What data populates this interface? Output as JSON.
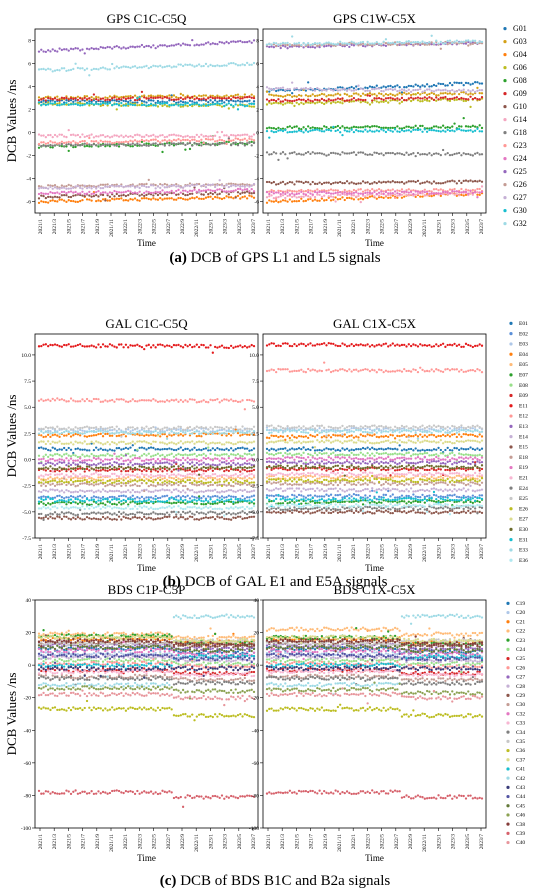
{
  "figure": {
    "x_ticks": [
      "2021/1",
      "2021/3",
      "2021/5",
      "2021/7",
      "2021/9",
      "2021/11",
      "2022/1",
      "2022/3",
      "2022/5",
      "2022/7",
      "2022/9",
      "2022/11",
      "2023/1",
      "2023/3",
      "2023/5",
      "2023/7"
    ],
    "time_label": "Time",
    "ylabel": "DCB Values /ns"
  },
  "captions": [
    {
      "tag": "(a)",
      "text": " DCB of GPS L1 and L5 signals"
    },
    {
      "tag": "(b)",
      "text": " DCB of GAL E1 and E5A signals"
    },
    {
      "tag": "(c)",
      "text": " DCB of BDS B1C and B2a signals"
    }
  ],
  "chart_data": [
    {
      "type": "scatter",
      "title": "GPS C1C-C5Q",
      "xlabel": "Time",
      "ylabel": "DCB Values /ns",
      "ylim": [
        -7,
        9
      ],
      "yticks": [
        -6,
        -4,
        -2,
        0,
        2,
        4,
        6,
        8
      ],
      "series": [
        {
          "name": "G01",
          "color": "#1f77b4",
          "start": 2.7,
          "end": 2.7
        },
        {
          "name": "G03",
          "color": "#d4a017",
          "start": 3.0,
          "end": 3.2
        },
        {
          "name": "G04",
          "color": "#ff7f0e",
          "start": -6.0,
          "end": -5.6
        },
        {
          "name": "G06",
          "color": "#bcbd22",
          "start": 2.5,
          "end": 2.3
        },
        {
          "name": "G08",
          "color": "#2ca02c",
          "start": -1.2,
          "end": -0.9
        },
        {
          "name": "G09",
          "color": "#d62728",
          "start": 2.9,
          "end": 3.0
        },
        {
          "name": "G10",
          "color": "#8c564b",
          "start": -5.6,
          "end": -5.2
        },
        {
          "name": "G14",
          "color": "#f4a6c0",
          "start": -0.3,
          "end": -0.3
        },
        {
          "name": "G18",
          "color": "#7f7f7f",
          "start": -1.1,
          "end": -1.0
        },
        {
          "name": "G23",
          "color": "#ff9896",
          "start": -0.9,
          "end": -0.6
        },
        {
          "name": "G24",
          "color": "#e377c2",
          "start": -5.3,
          "end": -5.0
        },
        {
          "name": "G25",
          "color": "#9467bd",
          "start": 7.1,
          "end": 7.9
        },
        {
          "name": "G26",
          "color": "#c49c94",
          "start": -4.7,
          "end": -4.5
        },
        {
          "name": "G27",
          "color": "#c5b0d5",
          "start": -4.8,
          "end": -4.6
        },
        {
          "name": "G30",
          "color": "#17becf",
          "start": 2.5,
          "end": 2.4
        },
        {
          "name": "G32",
          "color": "#9edae5",
          "start": 5.4,
          "end": 6.0
        }
      ]
    },
    {
      "type": "scatter",
      "title": "GPS C1W-C5X",
      "xlabel": "Time",
      "ylim": [
        -7,
        9
      ],
      "yticks": [
        -6,
        -4,
        -2,
        0,
        2,
        4,
        6,
        8
      ],
      "series": [
        {
          "name": "G01",
          "color": "#1f77b4",
          "start": 3.6,
          "end": 4.3
        },
        {
          "name": "G03",
          "color": "#d4a017",
          "start": 3.2,
          "end": 3.4
        },
        {
          "name": "G04",
          "color": "#ff7f0e",
          "start": -6.0,
          "end": -5.3
        },
        {
          "name": "G06",
          "color": "#bcbd22",
          "start": 2.5,
          "end": 2.9
        },
        {
          "name": "G08",
          "color": "#2ca02c",
          "start": 0.4,
          "end": 0.5
        },
        {
          "name": "G09",
          "color": "#d62728",
          "start": 2.8,
          "end": 3.0
        },
        {
          "name": "G10",
          "color": "#8c564b",
          "start": -4.4,
          "end": -4.3
        },
        {
          "name": "G14",
          "color": "#f4a6c0",
          "start": -5.6,
          "end": -5.3
        },
        {
          "name": "G18",
          "color": "#7f7f7f",
          "start": -1.8,
          "end": -1.9
        },
        {
          "name": "G23",
          "color": "#ff9896",
          "start": -5.1,
          "end": -5.0
        },
        {
          "name": "G24",
          "color": "#e377c2",
          "start": -5.3,
          "end": -5.2
        },
        {
          "name": "G25",
          "color": "#9467bd",
          "start": 7.4,
          "end": 7.8
        },
        {
          "name": "G26",
          "color": "#c49c94",
          "start": 7.6,
          "end": 7.8
        },
        {
          "name": "G27",
          "color": "#c5b0d5",
          "start": 3.8,
          "end": 3.6
        },
        {
          "name": "G30",
          "color": "#17becf",
          "start": 0.1,
          "end": 0.2
        },
        {
          "name": "G32",
          "color": "#9edae5",
          "start": 7.7,
          "end": 7.9
        }
      ]
    },
    {
      "type": "scatter",
      "title": "GAL C1C-C5Q",
      "xlabel": "Time",
      "ylabel": "DCB Values /ns",
      "ylim": [
        -7.5,
        12
      ],
      "yticks": [
        -7.5,
        -5.0,
        -2.5,
        0.0,
        2.5,
        5.0,
        7.5,
        10.0
      ],
      "series": [
        {
          "name": "E01",
          "color": "#1f77b4",
          "start": 1.0,
          "end": 1.0
        },
        {
          "name": "E02",
          "color": "#5a8fd8",
          "start": -3.6,
          "end": -3.6
        },
        {
          "name": "E03",
          "color": "#aec7e8",
          "start": 2.8,
          "end": 2.8
        },
        {
          "name": "E04",
          "color": "#ff7f0e",
          "start": 2.3,
          "end": 2.4
        },
        {
          "name": "E05",
          "color": "#ffbb78",
          "start": -1.8,
          "end": -1.8
        },
        {
          "name": "E07",
          "color": "#2ca02c",
          "start": -4.2,
          "end": -4.1
        },
        {
          "name": "E08",
          "color": "#98df8a",
          "start": 0.4,
          "end": 0.4
        },
        {
          "name": "E09",
          "color": "#d62728",
          "start": -1.0,
          "end": -1.0
        },
        {
          "name": "E11",
          "color": "#e41a1c",
          "start": 10.9,
          "end": 10.8
        },
        {
          "name": "E12",
          "color": "#ff9896",
          "start": 5.7,
          "end": 5.6
        },
        {
          "name": "E13",
          "color": "#9467bd",
          "start": -0.4,
          "end": -0.4
        },
        {
          "name": "E14",
          "color": "#c5b0d5",
          "start": -3.0,
          "end": -3.0
        },
        {
          "name": "E15",
          "color": "#8c564b",
          "start": -5.6,
          "end": -5.6
        },
        {
          "name": "E18",
          "color": "#c49c94",
          "start": -2.4,
          "end": -2.4
        },
        {
          "name": "E19",
          "color": "#e377c2",
          "start": 0.0,
          "end": 0.0
        },
        {
          "name": "E21",
          "color": "#f7b6d2",
          "start": -1.5,
          "end": -1.5
        },
        {
          "name": "E24",
          "color": "#7f7f7f",
          "start": -5.2,
          "end": -5.1
        },
        {
          "name": "E25",
          "color": "#c7c7c7",
          "start": 3.0,
          "end": 3.0
        },
        {
          "name": "E26",
          "color": "#bcbd22",
          "start": -2.1,
          "end": -2.1
        },
        {
          "name": "E27",
          "color": "#dbdb8d",
          "start": 1.6,
          "end": 1.6
        },
        {
          "name": "E30",
          "color": "#6b6b2c",
          "start": -0.8,
          "end": -0.8
        },
        {
          "name": "E31",
          "color": "#17becf",
          "start": -3.9,
          "end": -3.9
        },
        {
          "name": "E33",
          "color": "#9edae5",
          "start": 2.6,
          "end": 2.6
        },
        {
          "name": "E36",
          "color": "#b0e8f0",
          "start": -4.6,
          "end": -4.6
        }
      ]
    },
    {
      "type": "scatter",
      "title": "GAL C1X-C5X",
      "xlabel": "Time",
      "ylim": [
        -7.5,
        12
      ],
      "yticks": [
        -7.5,
        -5.0,
        -2.5,
        0.0,
        2.5,
        5.0,
        7.5,
        10.0
      ],
      "series": [
        {
          "name": "E01",
          "color": "#1f77b4",
          "start": 1.0,
          "end": 1.0
        },
        {
          "name": "E02",
          "color": "#5a8fd8",
          "start": -3.5,
          "end": -3.5
        },
        {
          "name": "E03",
          "color": "#aec7e8",
          "start": 2.9,
          "end": 2.9
        },
        {
          "name": "E04",
          "color": "#ff7f0e",
          "start": 2.2,
          "end": 2.3
        },
        {
          "name": "E05",
          "color": "#ffbb78",
          "start": -1.7,
          "end": -1.7
        },
        {
          "name": "E07",
          "color": "#2ca02c",
          "start": -4.1,
          "end": -4.0
        },
        {
          "name": "E08",
          "color": "#98df8a",
          "start": 0.5,
          "end": 0.5
        },
        {
          "name": "E09",
          "color": "#d62728",
          "start": -0.9,
          "end": -0.9
        },
        {
          "name": "E11",
          "color": "#e41a1c",
          "start": 11.0,
          "end": 10.9
        },
        {
          "name": "E12",
          "color": "#ff9896",
          "start": 8.5,
          "end": 8.5
        },
        {
          "name": "E13",
          "color": "#9467bd",
          "start": -0.3,
          "end": -0.3
        },
        {
          "name": "E14",
          "color": "#c5b0d5",
          "start": -2.9,
          "end": -2.9
        },
        {
          "name": "E15",
          "color": "#8c564b",
          "start": -5.0,
          "end": -5.0
        },
        {
          "name": "E18",
          "color": "#c49c94",
          "start": -2.3,
          "end": -2.3
        },
        {
          "name": "E19",
          "color": "#e377c2",
          "start": 0.1,
          "end": 0.1
        },
        {
          "name": "E21",
          "color": "#f7b6d2",
          "start": -1.4,
          "end": -1.4
        },
        {
          "name": "E24",
          "color": "#7f7f7f",
          "start": -4.7,
          "end": -4.6
        },
        {
          "name": "E25",
          "color": "#c7c7c7",
          "start": 3.1,
          "end": 3.1
        },
        {
          "name": "E26",
          "color": "#bcbd22",
          "start": -2.0,
          "end": -2.0
        },
        {
          "name": "E27",
          "color": "#dbdb8d",
          "start": 1.7,
          "end": 1.7
        },
        {
          "name": "E30",
          "color": "#6b6b2c",
          "start": -0.7,
          "end": -0.7
        },
        {
          "name": "E31",
          "color": "#17becf",
          "start": -3.8,
          "end": -3.8
        },
        {
          "name": "E33",
          "color": "#9edae5",
          "start": 2.7,
          "end": 2.7
        },
        {
          "name": "E36",
          "color": "#b0e8f0",
          "start": -4.4,
          "end": -4.4
        }
      ]
    },
    {
      "type": "scatter",
      "title": "BDS C1P-C5P",
      "xlabel": "Time",
      "ylabel": "DCB Values /ns",
      "ylim": [
        -100,
        40
      ],
      "yticks": [
        -100,
        -80,
        -60,
        -40,
        -20,
        0,
        20,
        40
      ],
      "step_at": 0.62,
      "series": [
        {
          "name": "C19",
          "color": "#1f77b4",
          "start": 10,
          "end": 8
        },
        {
          "name": "C20",
          "color": "#aec7e8",
          "start": 7,
          "end": 5
        },
        {
          "name": "C21",
          "color": "#ff7f0e",
          "start": 16,
          "end": 14
        },
        {
          "name": "C22",
          "color": "#ffbb78",
          "start": 19,
          "end": 17
        },
        {
          "name": "C23",
          "color": "#2ca02c",
          "start": 18,
          "end": 14
        },
        {
          "name": "C24",
          "color": "#98df8a",
          "start": 3,
          "end": 1
        },
        {
          "name": "C25",
          "color": "#d62728",
          "start": -3,
          "end": -5
        },
        {
          "name": "C26",
          "color": "#ff9896",
          "start": 1,
          "end": -1
        },
        {
          "name": "C27",
          "color": "#9467bd",
          "start": 12,
          "end": 10
        },
        {
          "name": "C28",
          "color": "#c5b0d5",
          "start": 5,
          "end": 3
        },
        {
          "name": "C29",
          "color": "#8c564b",
          "start": 14,
          "end": 12
        },
        {
          "name": "C30",
          "color": "#c49c94",
          "start": -7,
          "end": -9
        },
        {
          "name": "C32",
          "color": "#e377c2",
          "start": 9,
          "end": 7
        },
        {
          "name": "C33",
          "color": "#f7b6d2",
          "start": -4,
          "end": -6
        },
        {
          "name": "C34",
          "color": "#7f7f7f",
          "start": -8,
          "end": -11
        },
        {
          "name": "C35",
          "color": "#c7c7c7",
          "start": 13,
          "end": 15
        },
        {
          "name": "C36",
          "color": "#bcbd22",
          "start": -27,
          "end": -31
        },
        {
          "name": "C37",
          "color": "#dbdb8d",
          "start": 17,
          "end": 15
        },
        {
          "name": "C41",
          "color": "#17becf",
          "start": 0,
          "end": 5
        },
        {
          "name": "C42",
          "color": "#9edae5",
          "start": -12,
          "end": 30
        },
        {
          "name": "C43",
          "color": "#393b79",
          "start": -2,
          "end": -2
        },
        {
          "name": "C44",
          "color": "#5254a3",
          "start": 6,
          "end": 4
        },
        {
          "name": "C45",
          "color": "#637939",
          "start": 11,
          "end": 9
        },
        {
          "name": "C46",
          "color": "#8ca252",
          "start": -14,
          "end": -16
        },
        {
          "name": "C38",
          "color": "#843c39",
          "start": 15,
          "end": 13
        },
        {
          "name": "C39",
          "color": "#d6616b",
          "start": -78,
          "end": -81
        },
        {
          "name": "C40",
          "color": "#e7969c",
          "start": -18,
          "end": -20
        }
      ]
    },
    {
      "type": "scatter",
      "title": "BDS C1X-C5X",
      "xlabel": "Time",
      "ylim": [
        -100,
        40
      ],
      "yticks": [
        -100,
        -80,
        -60,
        -40,
        -20,
        0,
        20,
        40
      ],
      "step_at": 0.62,
      "series": [
        {
          "name": "C19",
          "color": "#1f77b4",
          "start": 10,
          "end": 8
        },
        {
          "name": "C20",
          "color": "#aec7e8",
          "start": 7,
          "end": 5
        },
        {
          "name": "C21",
          "color": "#ff7f0e",
          "start": 16,
          "end": 14
        },
        {
          "name": "C22",
          "color": "#ffbb78",
          "start": 22,
          "end": 19
        },
        {
          "name": "C23",
          "color": "#2ca02c",
          "start": 17,
          "end": 13
        },
        {
          "name": "C24",
          "color": "#98df8a",
          "start": 3,
          "end": 1
        },
        {
          "name": "C25",
          "color": "#d62728",
          "start": -3,
          "end": -5
        },
        {
          "name": "C26",
          "color": "#ff9896",
          "start": 1,
          "end": -1
        },
        {
          "name": "C27",
          "color": "#9467bd",
          "start": 12,
          "end": 10
        },
        {
          "name": "C28",
          "color": "#c5b0d5",
          "start": 5,
          "end": 3
        },
        {
          "name": "C29",
          "color": "#8c564b",
          "start": 14,
          "end": 12
        },
        {
          "name": "C30",
          "color": "#c49c94",
          "start": -7,
          "end": -9
        },
        {
          "name": "C32",
          "color": "#e377c2",
          "start": 9,
          "end": 7
        },
        {
          "name": "C33",
          "color": "#f7b6d2",
          "start": -4,
          "end": -6
        },
        {
          "name": "C34",
          "color": "#7f7f7f",
          "start": -8,
          "end": -11
        },
        {
          "name": "C35",
          "color": "#c7c7c7",
          "start": 13,
          "end": 15
        },
        {
          "name": "C36",
          "color": "#bcbd22",
          "start": -27,
          "end": -31
        },
        {
          "name": "C37",
          "color": "#dbdb8d",
          "start": 17,
          "end": 15
        },
        {
          "name": "C41",
          "color": "#17becf",
          "start": 0,
          "end": 5
        },
        {
          "name": "C42",
          "color": "#9edae5",
          "start": -12,
          "end": 30
        },
        {
          "name": "C43",
          "color": "#393b79",
          "start": -2,
          "end": -2
        },
        {
          "name": "C44",
          "color": "#5254a3",
          "start": 6,
          "end": 4
        },
        {
          "name": "C45",
          "color": "#637939",
          "start": 11,
          "end": 9
        },
        {
          "name": "C46",
          "color": "#8ca252",
          "start": -15,
          "end": -17
        },
        {
          "name": "C38",
          "color": "#843c39",
          "start": 15,
          "end": 13
        },
        {
          "name": "C39",
          "color": "#d6616b",
          "start": -78,
          "end": -81
        },
        {
          "name": "C40",
          "color": "#e7969c",
          "start": -18,
          "end": -20
        }
      ]
    }
  ]
}
